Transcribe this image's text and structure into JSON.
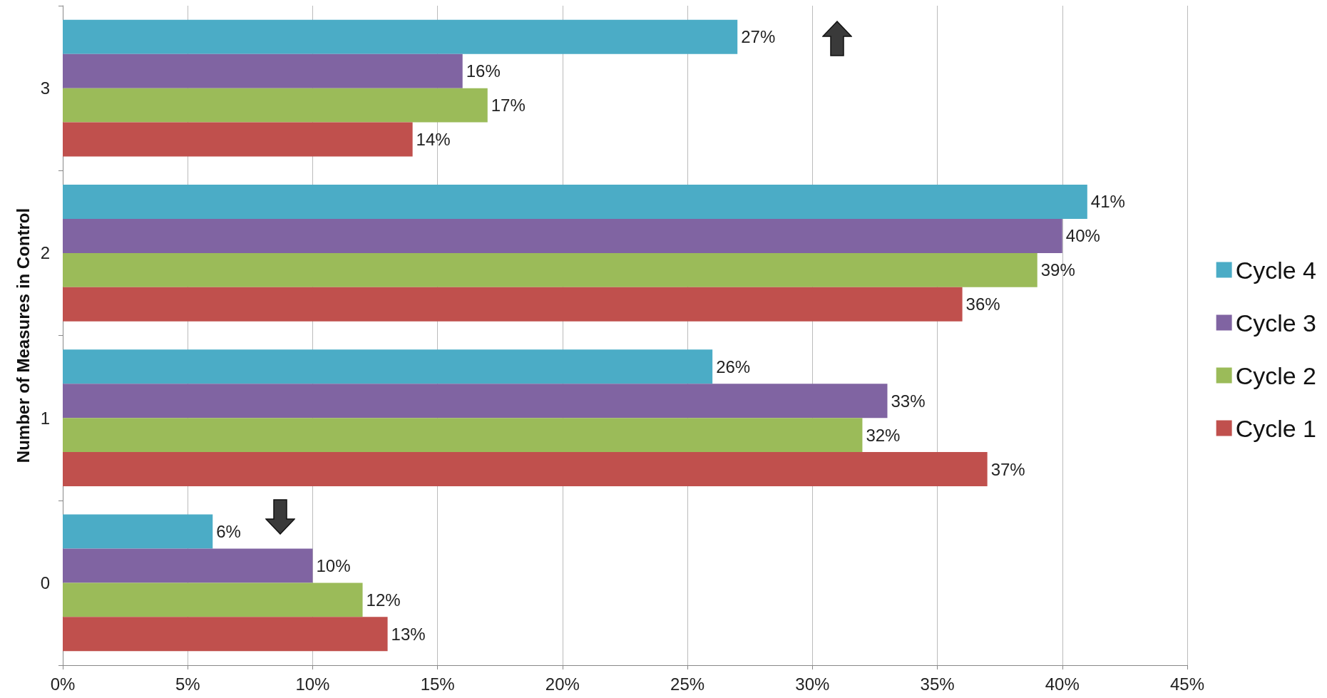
{
  "chart_data": {
    "type": "bar",
    "orientation": "horizontal",
    "ylabel": "Number of Measures in Control",
    "categories": [
      "3",
      "2",
      "1",
      "0"
    ],
    "series": [
      {
        "name": "Cycle 4",
        "color": "#4bacc6",
        "values": [
          27,
          41,
          26,
          6
        ],
        "value_labels": [
          "27%",
          "41%",
          "26%",
          "6%"
        ]
      },
      {
        "name": "Cycle 3",
        "color": "#8064a2",
        "values": [
          16,
          40,
          33,
          10
        ],
        "value_labels": [
          "16%",
          "40%",
          "33%",
          "10%"
        ]
      },
      {
        "name": "Cycle 2",
        "color": "#9bbb59",
        "values": [
          17,
          39,
          32,
          12
        ],
        "value_labels": [
          "17%",
          "39%",
          "32%",
          "12%"
        ]
      },
      {
        "name": "Cycle 1",
        "color": "#c0504d",
        "values": [
          14,
          36,
          37,
          13
        ],
        "value_labels": [
          "14%",
          "36%",
          "37%",
          "13%"
        ]
      }
    ],
    "xlim": [
      0,
      45
    ],
    "xticks": [
      {
        "value": 0,
        "label": "0%"
      },
      {
        "value": 5,
        "label": "5%"
      },
      {
        "value": 10,
        "label": "10%"
      },
      {
        "value": 15,
        "label": "15%"
      },
      {
        "value": 20,
        "label": "20%"
      },
      {
        "value": 25,
        "label": "25%"
      },
      {
        "value": 30,
        "label": "30%"
      },
      {
        "value": 35,
        "label": "35%"
      },
      {
        "value": 40,
        "label": "40%"
      },
      {
        "value": 45,
        "label": "45%"
      }
    ],
    "grid": "x",
    "legend": "right"
  }
}
